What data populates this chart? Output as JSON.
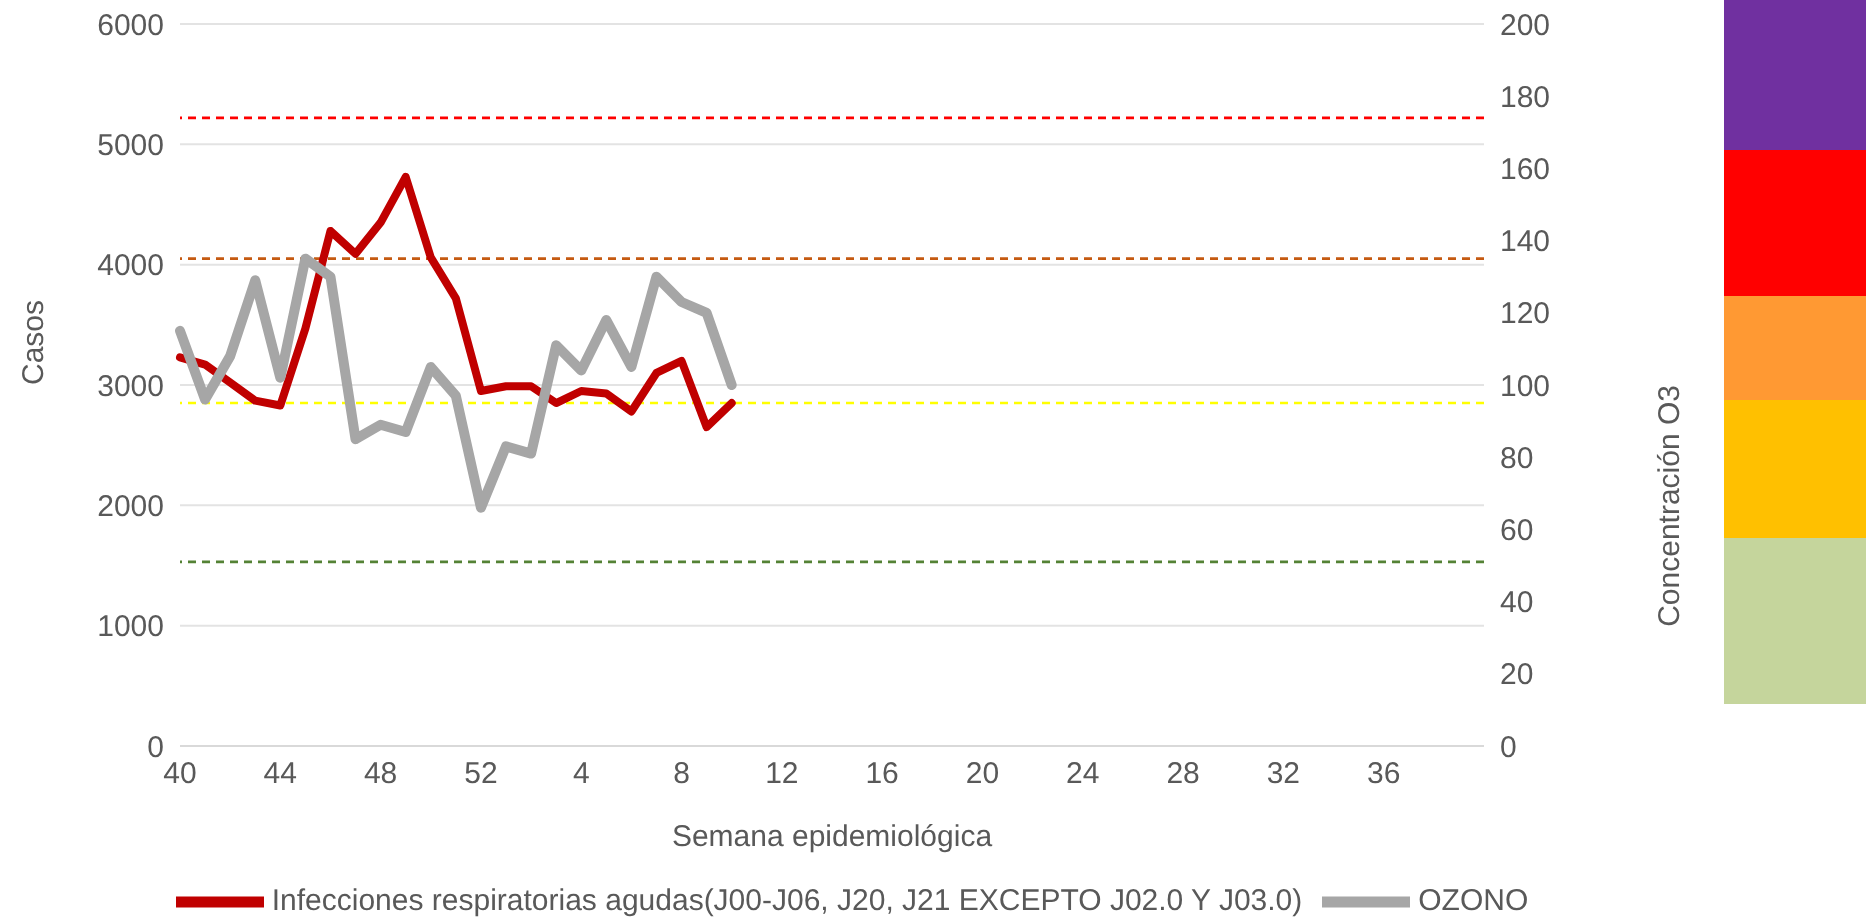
{
  "chart_data": {
    "type": "line",
    "xlabel": "Semana epidemiológica",
    "ylabel": "Casos",
    "y2label": "Concentración O3",
    "categories": [
      "40",
      null,
      null,
      null,
      "44",
      null,
      null,
      null,
      "48",
      null,
      null,
      null,
      "52",
      null,
      null,
      null,
      "4",
      null,
      null,
      null,
      "8",
      null,
      null,
      null,
      "12",
      null,
      null,
      null,
      "16",
      null,
      null,
      null,
      "20",
      null,
      null,
      null,
      "24",
      null,
      null,
      null,
      "28",
      null,
      null,
      null,
      "32",
      null,
      null,
      null,
      "36",
      null,
      null,
      null,
      null
    ],
    "series": [
      {
        "name": "Infecciones respiratorias agudas(J00-J06, J20, J21 EXCEPTO J02.0 Y J03.0)",
        "color": "#c00000",
        "values": [
          3230,
          3170,
          3020,
          2870,
          2830,
          3470,
          4280,
          4090,
          4350,
          4730,
          4060,
          3720,
          2950,
          2990,
          2990,
          2850,
          2950,
          2930,
          2780,
          3100,
          3200,
          2650,
          2850,
          null,
          null,
          null,
          null,
          null,
          null,
          null,
          null,
          null,
          null,
          null,
          null,
          null,
          null,
          null,
          null,
          null,
          null,
          null,
          null,
          null,
          null,
          null,
          null,
          null,
          null,
          null,
          null,
          null,
          null
        ]
      },
      {
        "name": "OZONO",
        "color": "#a6a6a6",
        "axis": "y2",
        "values": [
          115,
          96,
          108,
          129,
          102,
          135,
          130,
          85,
          89,
          87,
          105,
          97,
          66,
          83,
          81,
          111,
          104,
          118,
          105,
          130,
          123,
          120,
          100,
          null,
          null,
          null,
          null,
          null,
          null,
          null,
          null,
          null,
          null,
          null,
          null,
          null,
          null,
          null,
          null,
          null,
          null,
          null,
          null,
          null,
          null,
          null,
          null,
          null,
          null,
          null,
          null,
          null,
          null
        ]
      }
    ],
    "ylim": [
      0,
      6000
    ],
    "yticks": [
      0,
      1000,
      2000,
      3000,
      4000,
      5000,
      6000
    ],
    "y2lim": [
      0,
      200
    ],
    "y2ticks": [
      0,
      20,
      40,
      60,
      80,
      100,
      120,
      140,
      160,
      180,
      200
    ],
    "ref_lines": [
      {
        "axis": "y2",
        "value": 174,
        "color": "#ff0000",
        "line_style": "dashed"
      },
      {
        "axis": "y2",
        "value": 135,
        "color": "#c55a11",
        "line_style": "dashed"
      },
      {
        "axis": "y2",
        "value": 95,
        "color": "#ffff00",
        "line_style": "dashed"
      },
      {
        "axis": "y2",
        "value": 51,
        "color": "#548235",
        "line_style": "dashed"
      }
    ],
    "grid": "y",
    "legend": "bottom",
    "marker": "none",
    "line_style": "solid"
  }
}
